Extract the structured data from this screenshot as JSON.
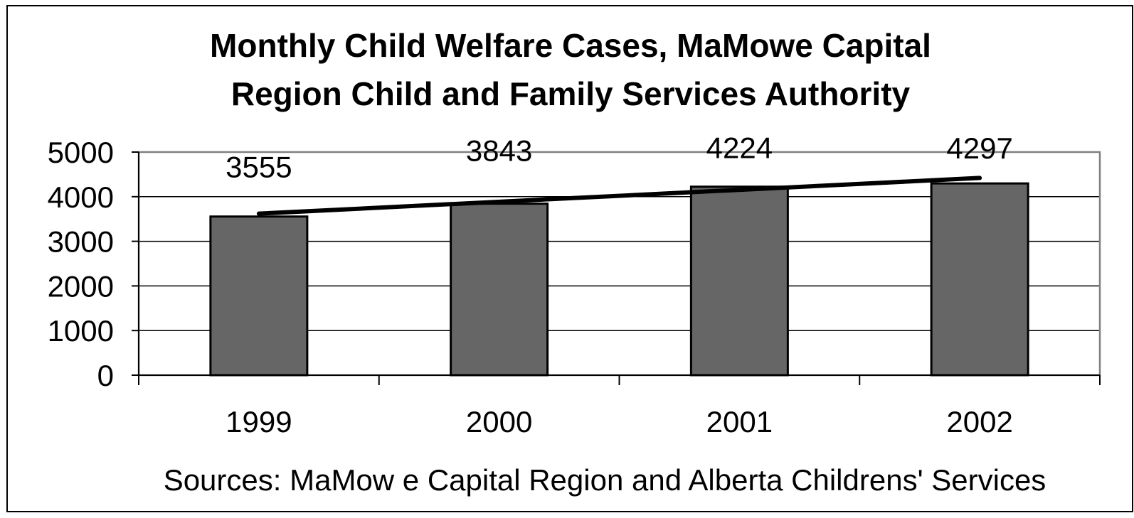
{
  "chart_data": {
    "type": "bar",
    "title_lines": [
      "Monthly Child Welfare Cases, MaMowe Capital",
      "Region Child and Family Services Authority"
    ],
    "categories": [
      "1999",
      "2000",
      "2001",
      "2002"
    ],
    "values": [
      3555,
      3843,
      4224,
      4297
    ],
    "data_labels": [
      "3555",
      "3843",
      "4224",
      "4297"
    ],
    "yticks": [
      "0",
      "1000",
      "2000",
      "3000",
      "4000",
      "5000"
    ],
    "ylim": [
      0,
      5000
    ],
    "grid": true,
    "trendline": {
      "type": "linear",
      "start": 3620,
      "end": 4420
    },
    "source": "Sources: MaMow e Capital Region and Alberta Childrens' Services",
    "colors": {
      "bar": "#666666",
      "bar_stroke": "#000000",
      "grid": "#000000",
      "plot_border": "#808080",
      "trend": "#000000"
    }
  }
}
